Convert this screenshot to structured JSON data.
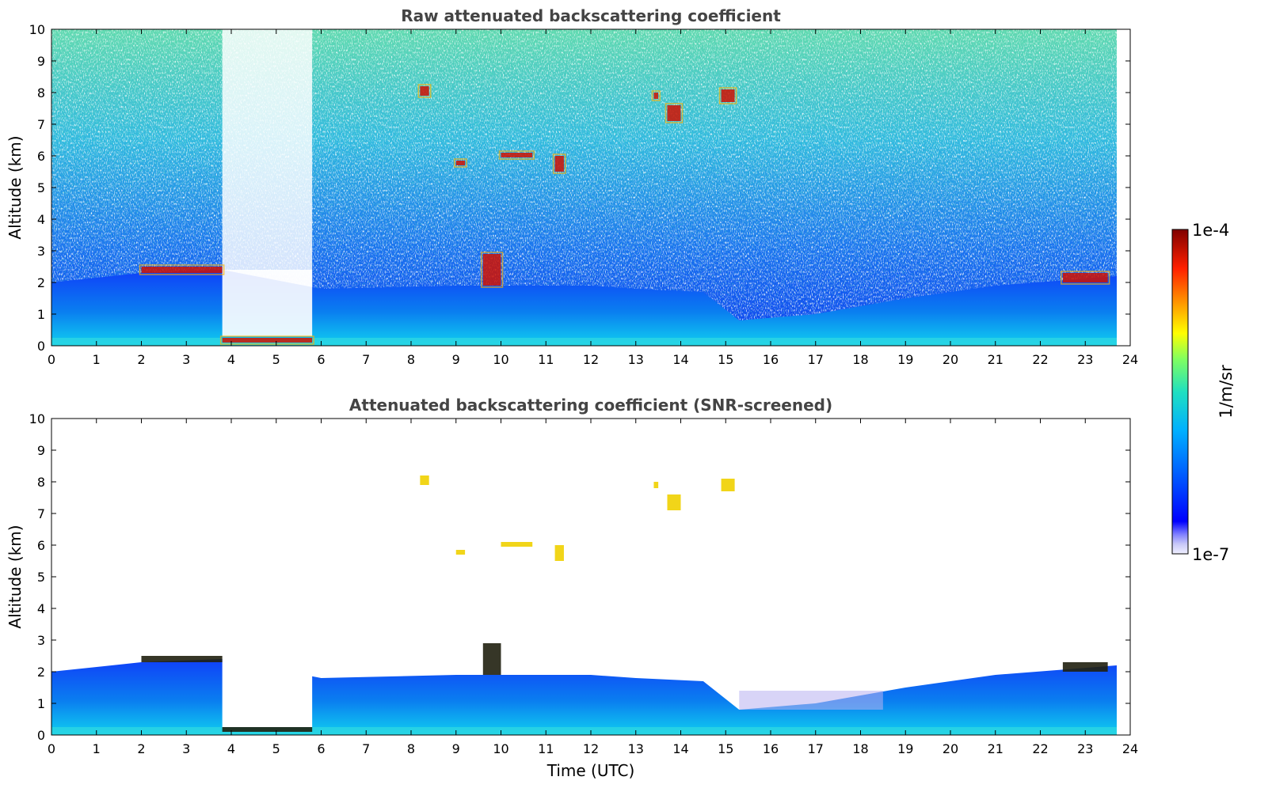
{
  "chart_data": [
    {
      "type": "heatmap",
      "title": "Raw attenuated backscattering coefficient",
      "xlabel": "",
      "ylabel": "Altitude (km)",
      "xlim": [
        0,
        24
      ],
      "ylim": [
        0,
        10
      ],
      "x_ticks": [
        "0",
        "1",
        "2",
        "3",
        "4",
        "5",
        "6",
        "7",
        "8",
        "9",
        "10",
        "11",
        "12",
        "13",
        "14",
        "15",
        "16",
        "17",
        "18",
        "19",
        "20",
        "21",
        "22",
        "23",
        "24"
      ],
      "y_ticks": [
        "0",
        "1",
        "2",
        "3",
        "4",
        "5",
        "6",
        "7",
        "8",
        "9",
        "10"
      ],
      "data_end_time": 23.7,
      "features": {
        "boundary_layer_top": [
          {
            "t": 0,
            "h": 2.0
          },
          {
            "t": 2,
            "h": 2.3
          },
          {
            "t": 3.8,
            "h": 2.4
          },
          {
            "t": 6,
            "h": 1.8
          },
          {
            "t": 9,
            "h": 1.9
          },
          {
            "t": 12,
            "h": 1.9
          },
          {
            "t": 13,
            "h": 1.8
          },
          {
            "t": 14.5,
            "h": 1.7
          },
          {
            "t": 15.3,
            "h": 0.8
          },
          {
            "t": 17,
            "h": 1.0
          },
          {
            "t": 19,
            "h": 1.5
          },
          {
            "t": 21,
            "h": 1.9
          },
          {
            "t": 23.7,
            "h": 2.2
          }
        ],
        "clear_noise_gap": {
          "t0": 3.8,
          "t1": 5.8
        },
        "clouds": [
          {
            "t0": 2.0,
            "t1": 3.8,
            "h0": 2.3,
            "h1": 2.5
          },
          {
            "t0": 3.8,
            "t1": 5.8,
            "h0": 0.1,
            "h1": 0.25
          },
          {
            "t0": 9.0,
            "t1": 9.2,
            "h0": 5.7,
            "h1": 5.85
          },
          {
            "t0": 9.6,
            "t1": 10.0,
            "h0": 1.9,
            "h1": 2.9
          },
          {
            "t0": 10.0,
            "t1": 10.7,
            "h0": 5.95,
            "h1": 6.1
          },
          {
            "t0": 8.2,
            "t1": 8.4,
            "h0": 7.9,
            "h1": 8.2
          },
          {
            "t0": 11.2,
            "t1": 11.4,
            "h0": 5.5,
            "h1": 6.0
          },
          {
            "t0": 13.4,
            "t1": 13.5,
            "h0": 7.8,
            "h1": 8.0
          },
          {
            "t0": 13.7,
            "t1": 14.0,
            "h0": 7.1,
            "h1": 7.6
          },
          {
            "t0": 14.9,
            "t1": 15.2,
            "h0": 7.7,
            "h1": 8.1
          },
          {
            "t0": 22.5,
            "t1": 23.5,
            "h0": 2.0,
            "h1": 2.3
          }
        ]
      }
    },
    {
      "type": "heatmap",
      "title": "Attenuated backscattering coefficient (SNR-screened)",
      "xlabel": "Time (UTC)",
      "ylabel": "Altitude (km)",
      "xlim": [
        0,
        24
      ],
      "ylim": [
        0,
        10
      ],
      "x_ticks": [
        "0",
        "1",
        "2",
        "3",
        "4",
        "5",
        "6",
        "7",
        "8",
        "9",
        "10",
        "11",
        "12",
        "13",
        "14",
        "15",
        "16",
        "17",
        "18",
        "19",
        "20",
        "21",
        "22",
        "23",
        "24"
      ],
      "y_ticks": [
        "0",
        "1",
        "2",
        "3",
        "4",
        "5",
        "6",
        "7",
        "8",
        "9",
        "10"
      ],
      "data_end_time": 23.7
    }
  ],
  "colorbar": {
    "label": "1/m/sr",
    "max_label": "1e-4",
    "min_label": "1e-7",
    "colors": [
      "#ffffff",
      "#0000ff",
      "#0060ff",
      "#00b0ff",
      "#20e0c0",
      "#80ff60",
      "#ffff00",
      "#ff9000",
      "#ff2000",
      "#800000"
    ]
  }
}
